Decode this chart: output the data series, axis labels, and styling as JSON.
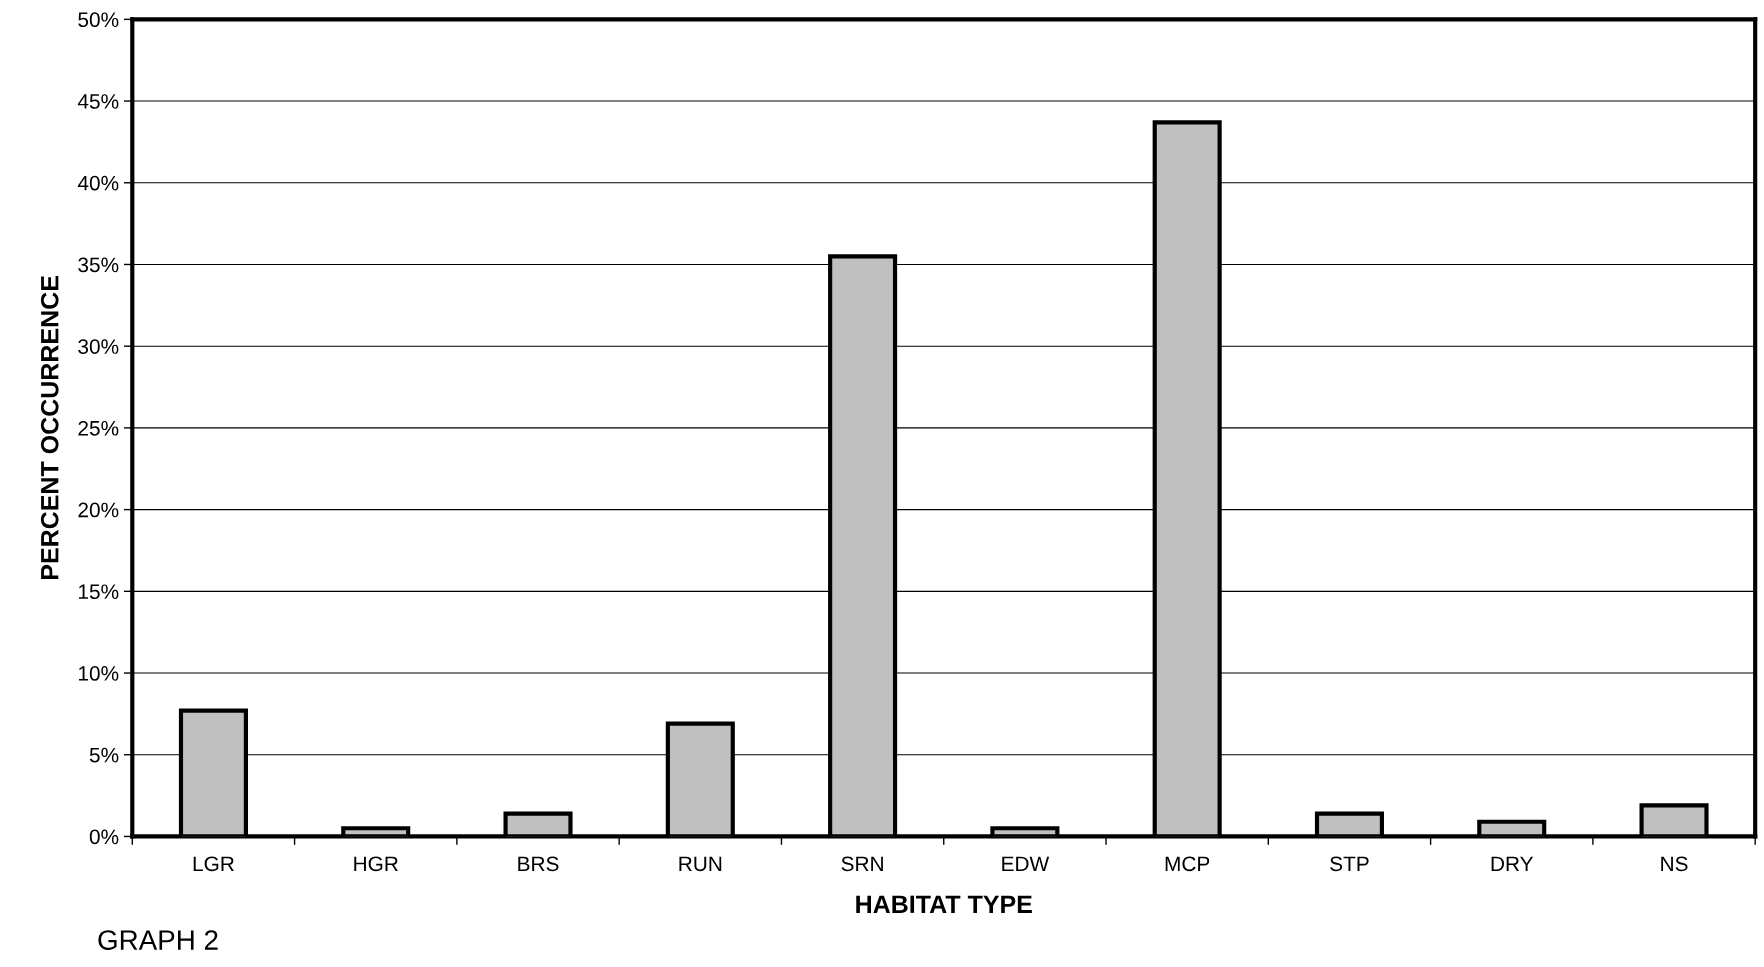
{
  "chart_data": {
    "type": "bar",
    "xlabel": "HABITAT TYPE",
    "ylabel": "PERCENT OCCURRENCE",
    "categories": [
      "LGR",
      "HGR",
      "BRS",
      "RUN",
      "SRN",
      "EDW",
      "MCP",
      "STP",
      "DRY",
      "NS"
    ],
    "values": [
      7.7,
      0.5,
      1.4,
      6.9,
      35.5,
      0.5,
      43.7,
      1.4,
      0.9,
      1.9
    ],
    "color": "#c0c0c0",
    "ylim": [
      0,
      50
    ],
    "yticks": [
      {
        "value": 0,
        "label": "0%"
      },
      {
        "value": 5,
        "label": "5%"
      },
      {
        "value": 10,
        "label": "10%"
      },
      {
        "value": 15,
        "label": "15%"
      },
      {
        "value": 20,
        "label": "20%"
      },
      {
        "value": 25,
        "label": "25%"
      },
      {
        "value": 30,
        "label": "30%"
      },
      {
        "value": 35,
        "label": "35%"
      },
      {
        "value": 40,
        "label": "40%"
      },
      {
        "value": 45,
        "label": "45%"
      },
      {
        "value": 50,
        "label": "50%"
      }
    ],
    "grid": "y",
    "legend": false,
    "annotations": [
      "GRAPH 2"
    ]
  }
}
